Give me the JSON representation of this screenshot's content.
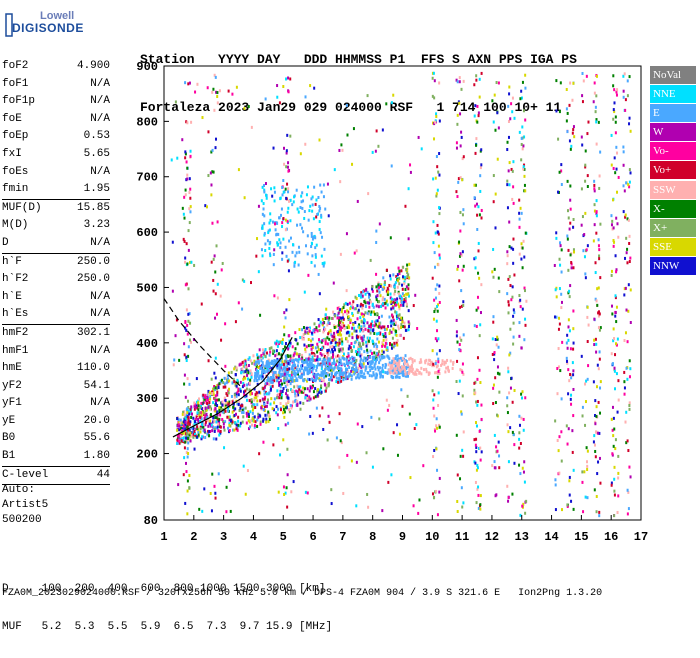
{
  "logo": {
    "line1": "Lowell",
    "line2": "DIGISONDE"
  },
  "header": {
    "labels": "Station   YYYY DAY   DDD HHMMSS P1  FFS S AXN PPS IGA PS",
    "values": "Fortaleza 2023 Jan29 029 024000 RSF   1 714 100 10+ 11"
  },
  "params": [
    {
      "k": "foF2",
      "v": "4.900"
    },
    {
      "k": "foF1",
      "v": "N/A"
    },
    {
      "k": "foF1p",
      "v": "N/A"
    },
    {
      "k": "foE",
      "v": "N/A"
    },
    {
      "k": "foEp",
      "v": "0.53"
    },
    {
      "k": "fxI",
      "v": "5.65"
    },
    {
      "k": "foEs",
      "v": "N/A"
    },
    {
      "k": "fmin",
      "v": "1.95"
    },
    {
      "sep": true
    },
    {
      "k": "MUF(D)",
      "v": "15.85"
    },
    {
      "k": "M(D)",
      "v": "3.23"
    },
    {
      "k": "D",
      "v": "N/A"
    },
    {
      "sep": true
    },
    {
      "k": "h`F",
      "v": "250.0"
    },
    {
      "k": "h`F2",
      "v": "250.0"
    },
    {
      "k": "h`E",
      "v": "N/A"
    },
    {
      "k": "h`Es",
      "v": "N/A"
    },
    {
      "sep": true
    },
    {
      "k": "hmF2",
      "v": "302.1"
    },
    {
      "k": "hmF1",
      "v": "N/A"
    },
    {
      "k": "hmE",
      "v": "110.0"
    },
    {
      "k": "yF2",
      "v": "54.1"
    },
    {
      "k": "yF1",
      "v": "N/A"
    },
    {
      "k": "yE",
      "v": "20.0"
    },
    {
      "k": "B0",
      "v": "55.6"
    },
    {
      "k": "B1",
      "v": "1.80"
    },
    {
      "sep": true
    },
    {
      "k": "C-level",
      "v": "44"
    },
    {
      "sep": true
    }
  ],
  "auto": {
    "l1": "Auto:",
    "l2": "Artist5",
    "l3": "500200"
  },
  "legend": [
    {
      "label": "NoVal",
      "color": "#808080"
    },
    {
      "label": "NNE",
      "color": "#00e0ff"
    },
    {
      "label": "E",
      "color": "#4aa8ff"
    },
    {
      "label": "W",
      "color": "#b000b0"
    },
    {
      "label": "Vo-",
      "color": "#ff00a0"
    },
    {
      "label": "Vo+",
      "color": "#d0002a"
    },
    {
      "label": "SSW",
      "color": "#ffb0b0"
    },
    {
      "label": "X-",
      "color": "#008000"
    },
    {
      "label": "X+",
      "color": "#80b060"
    },
    {
      "label": "SSE",
      "color": "#d8d800"
    },
    {
      "label": "NNW",
      "color": "#1010d0"
    }
  ],
  "chart_data": {
    "type": "scatter",
    "title": "",
    "xlabel": "",
    "ylabel": "",
    "xlim": [
      1,
      17
    ],
    "ylim": [
      80,
      900
    ],
    "x_ticks": [
      1,
      2,
      3,
      4,
      5,
      6,
      7,
      8,
      9,
      10,
      11,
      12,
      13,
      14,
      15,
      16,
      17
    ],
    "y_ticks": [
      80,
      200,
      300,
      400,
      500,
      600,
      700,
      800,
      900
    ],
    "profile_curve": {
      "x": [
        1.3,
        2.0,
        2.8,
        3.6,
        4.3,
        4.9,
        5.3
      ],
      "y": [
        230,
        250,
        272,
        300,
        330,
        370,
        410
      ]
    },
    "dashed_curve": {
      "x": [
        1.0,
        1.5,
        2.2,
        3.0,
        3.6
      ],
      "y": [
        480,
        440,
        395,
        350,
        320
      ]
    }
  },
  "footer": {
    "d_line": "D     100  200  400  600  800 1000 1500 3000 [km]",
    "muf_line": "MUF   5.2  5.3  5.5  5.9  6.5  7.3  9.7 15.9 [MHz]",
    "file_line": "FZA0M_2023029024000.RSF / 320fx256h 50 kHz 5.0 km / DPS-4 FZA0M 904 / 3.9 S 321.6 E   Ion2Png 1.3.20"
  }
}
